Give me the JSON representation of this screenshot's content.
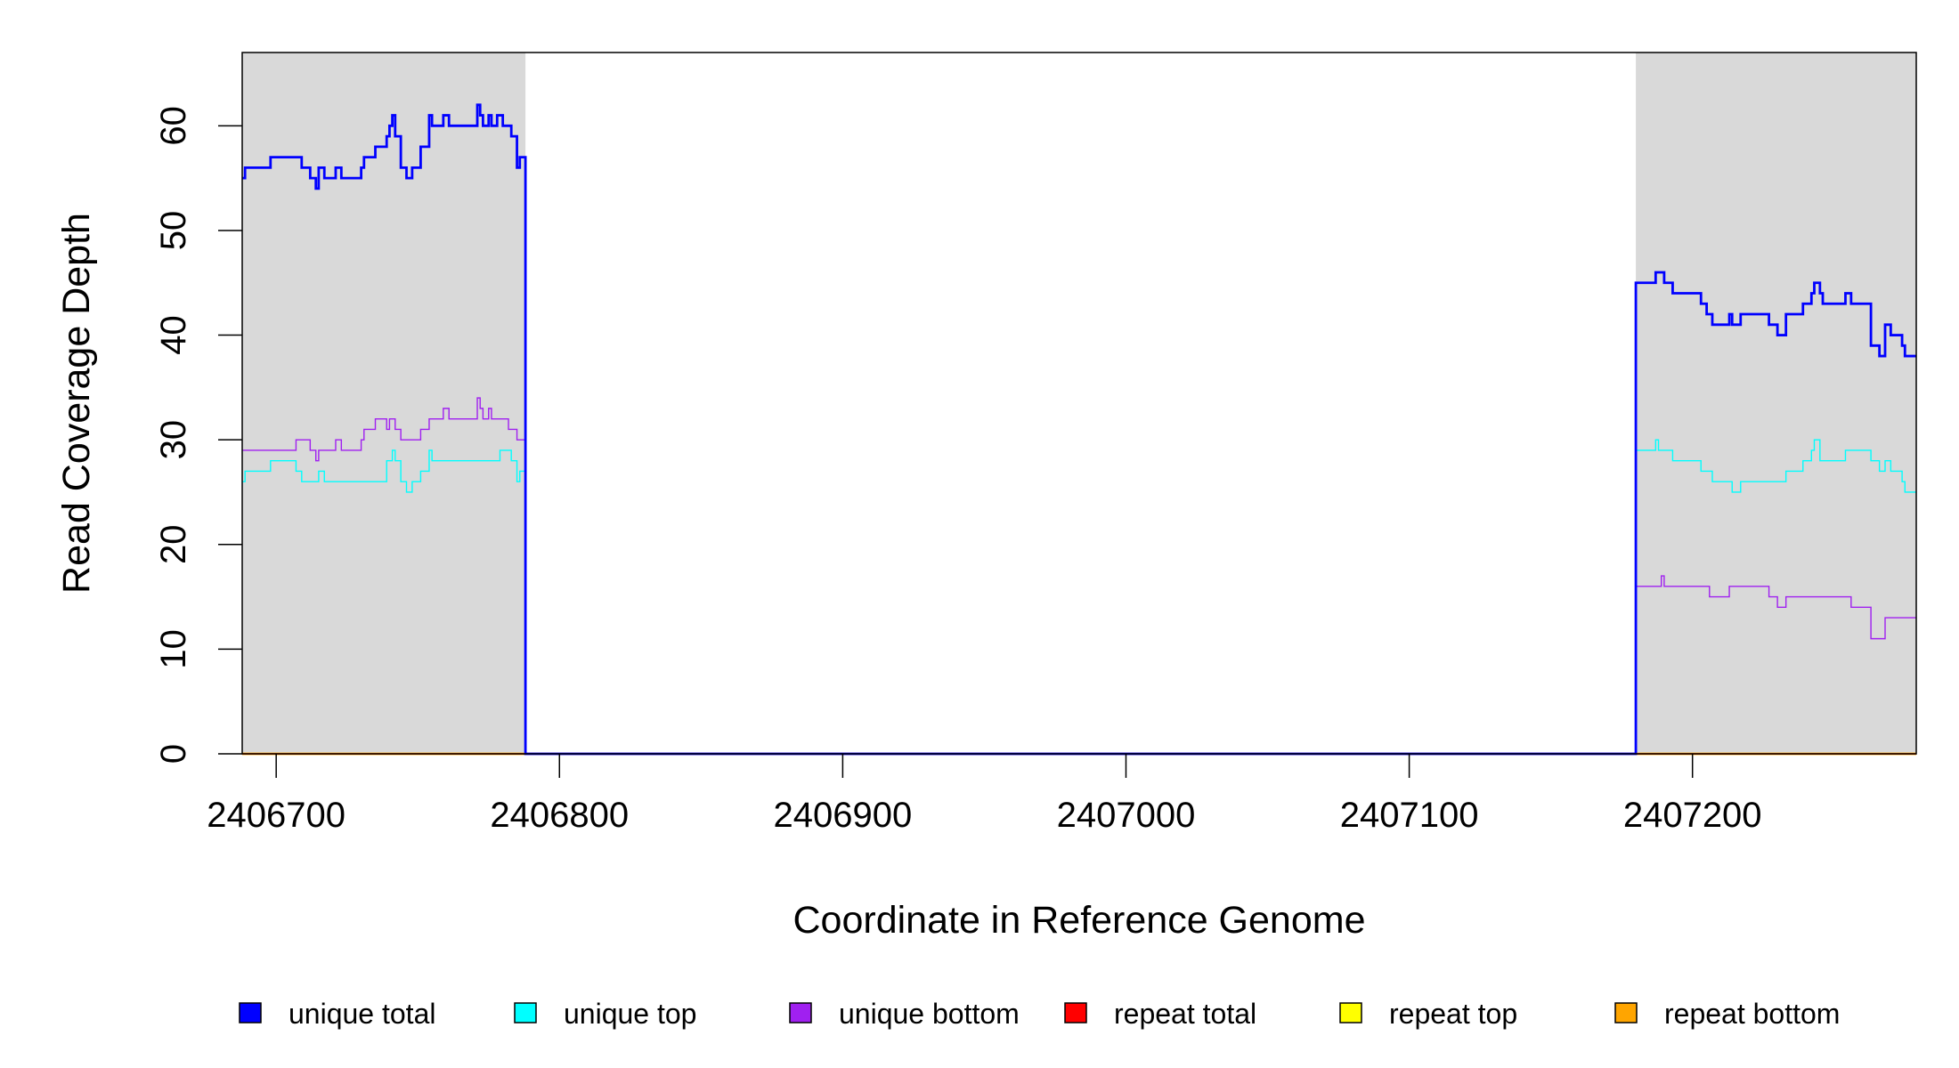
{
  "chart_data": {
    "type": "line",
    "step": true,
    "xlabel": "Coordinate in Reference Genome",
    "ylabel": "Read Coverage Depth",
    "xlim": [
      2406688,
      2407279
    ],
    "ylim": [
      0,
      67
    ],
    "x_ticks": [
      2406700,
      2406800,
      2406900,
      2407000,
      2407100,
      2407200
    ],
    "x_tick_labels": [
      "2406700",
      "2406800",
      "2406900",
      "2407000",
      "2407100",
      "2407200"
    ],
    "y_ticks": [
      0,
      10,
      20,
      30,
      40,
      50,
      60
    ],
    "y_tick_labels": [
      "0",
      "10",
      "20",
      "30",
      "40",
      "50",
      "60"
    ],
    "grid": false,
    "shaded_regions": [
      [
        2406688,
        2406788
      ],
      [
        2407180,
        2407279
      ]
    ],
    "shade_color": "#d9d9d9",
    "legend_position": "bottom",
    "series": [
      {
        "name": "unique total",
        "color": "#0000ff",
        "width": 2,
        "x": [
          2406688,
          2406689,
          2406698,
          2406709,
          2406712,
          2406714,
          2406715,
          2406717,
          2406721,
          2406723,
          2406730,
          2406731,
          2406735,
          2406739,
          2406740,
          2406741,
          2406742,
          2406744,
          2406746,
          2406748,
          2406751,
          2406754,
          2406755,
          2406759,
          2406761,
          2406771,
          2406772,
          2406773,
          2406775,
          2406776,
          2406778,
          2406780,
          2406783,
          2406785,
          2406786,
          2406788,
          2407180,
          2407187,
          2407190,
          2407193,
          2407203,
          2407205,
          2407207,
          2407213,
          2407214,
          2407217,
          2407227,
          2407230,
          2407233,
          2407239,
          2407242,
          2407243,
          2407245,
          2407246,
          2407254,
          2407256,
          2407263,
          2407266,
          2407268,
          2407270,
          2407274,
          2407275,
          2407279
        ],
        "y": [
          55,
          56,
          57,
          56,
          55,
          54,
          56,
          55,
          56,
          55,
          56,
          57,
          58,
          59,
          60,
          61,
          59,
          56,
          55,
          56,
          58,
          61,
          60,
          61,
          60,
          62,
          61,
          60,
          61,
          60,
          61,
          60,
          59,
          56,
          57,
          0,
          45,
          46,
          45,
          44,
          43,
          42,
          41,
          42,
          41,
          42,
          41,
          40,
          42,
          43,
          44,
          45,
          44,
          43,
          44,
          43,
          39,
          38,
          41,
          40,
          39,
          38,
          38
        ]
      },
      {
        "name": "unique top",
        "color": "#00ffff",
        "width": 1,
        "x": [
          2406688,
          2406689,
          2406698,
          2406707,
          2406709,
          2406715,
          2406717,
          2406739,
          2406741,
          2406742,
          2406744,
          2406746,
          2406748,
          2406751,
          2406754,
          2406755,
          2406779,
          2406783,
          2406785,
          2406786,
          2406788,
          2407180,
          2407187,
          2407188,
          2407193,
          2407203,
          2407207,
          2407214,
          2407217,
          2407233,
          2407239,
          2407242,
          2407243,
          2407245,
          2407254,
          2407263,
          2407266,
          2407268,
          2407270,
          2407274,
          2407275,
          2407279
        ],
        "y": [
          26,
          27,
          28,
          27,
          26,
          27,
          26,
          28,
          29,
          28,
          26,
          25,
          26,
          27,
          29,
          28,
          29,
          28,
          26,
          27,
          0,
          29,
          30,
          29,
          28,
          27,
          26,
          25,
          26,
          27,
          28,
          29,
          30,
          28,
          29,
          28,
          27,
          28,
          27,
          26,
          25,
          25
        ]
      },
      {
        "name": "unique bottom",
        "color": "#a020f0",
        "width": 1,
        "x": [
          2406688,
          2406707,
          2406712,
          2406714,
          2406715,
          2406721,
          2406723,
          2406730,
          2406731,
          2406735,
          2406739,
          2406740,
          2406742,
          2406744,
          2406751,
          2406754,
          2406759,
          2406761,
          2406771,
          2406772,
          2406773,
          2406775,
          2406776,
          2406782,
          2406785,
          2406788,
          2407180,
          2407189,
          2407190,
          2407206,
          2407213,
          2407227,
          2407230,
          2407233,
          2407256,
          2407263,
          2407268,
          2407279
        ],
        "y": [
          29,
          30,
          29,
          28,
          29,
          30,
          29,
          30,
          31,
          32,
          31,
          32,
          31,
          30,
          31,
          32,
          33,
          32,
          34,
          33,
          32,
          33,
          32,
          31,
          30,
          0,
          16,
          17,
          16,
          15,
          16,
          15,
          14,
          15,
          14,
          11,
          13,
          13
        ]
      },
      {
        "name": "repeat total",
        "color": "#ff0000",
        "width": 1,
        "x": [
          2406688,
          2407279
        ],
        "y": [
          0,
          0
        ]
      },
      {
        "name": "repeat top",
        "color": "#ffff00",
        "width": 1,
        "x": [
          2406688,
          2407279
        ],
        "y": [
          0,
          0
        ]
      },
      {
        "name": "repeat bottom",
        "color": "#ffa500",
        "width": 2,
        "x": [
          2406688,
          2407279
        ],
        "y": [
          0,
          0
        ]
      }
    ]
  }
}
